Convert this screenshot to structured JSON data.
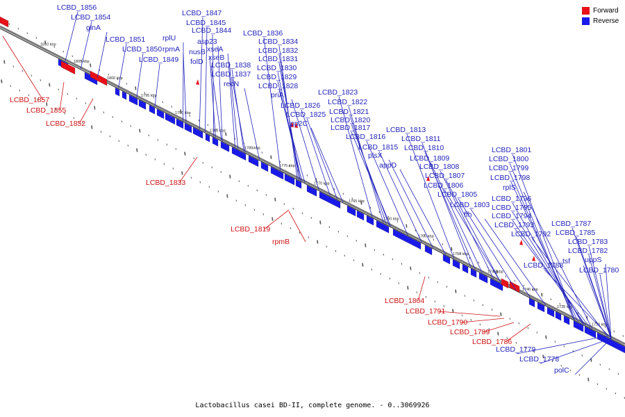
{
  "colors": {
    "forward": "#e8111a",
    "reverse": "#1a1ae8",
    "backbone": "#7a7a7a",
    "label_forward": "#cc1111",
    "label_reverse": "#2222bb"
  },
  "legend": [
    {
      "label": "Forward",
      "color": "#e8111a"
    },
    {
      "label": "Reverse",
      "color": "#1a1ae8"
    }
  ],
  "caption": "Lactobacillus casei BD-II, complete genome. - 0..3069926",
  "ruler": [
    "1810 kbp",
    "1805 kbp",
    "1800 kbp",
    "1795 kbp",
    "1790 kbp",
    "1785 kbp",
    "1780 kbp",
    "1775 kbp",
    "1770 kbp",
    "1765 kbp",
    "1760 kbp",
    "1755 kbp",
    "1750 kbp",
    "1745 kbp",
    "1740 kbp",
    "1735 kbp",
    "1730 kbp"
  ],
  "reverse_labels": [
    "LCBD_1856",
    "LCBD_1854",
    "glnA",
    "LCBD_1851",
    "LCBD_1850",
    "LCBD_1849",
    "LCBD_1847",
    "LCBD_1845",
    "rplU",
    "LCBD_1844",
    "rpmA",
    "asp23",
    "nusB",
    "xseA",
    "xseB",
    "folD",
    "LCBD_1838",
    "LCBD_1837",
    "recN",
    "LCBD_1836",
    "LCBD_1834",
    "LCBD_1832",
    "LCBD_1831",
    "LCBD_1830",
    "LCBD_1829",
    "LCBD_1828",
    "priA",
    "LCBD_1826",
    "LCBD_1825",
    "pp2C",
    "LCBD_1823",
    "LCBD_1822",
    "LCBD_1821",
    "LCBD_1820",
    "LCBD_1817",
    "LCBD_1816",
    "LCBD_1815",
    "plsX",
    "appD",
    "LCBD_1813",
    "LCBD_1811",
    "LCBD_1810",
    "LCBD_1809",
    "LCBD_1808",
    "LCBD_1807",
    "LCBD_1806",
    "LCBD_1805",
    "LCBD_1803",
    "ffh",
    "LCBD_1801",
    "LCBD_1800",
    "LCBD_1799",
    "LCBD_1798",
    "rplS",
    "LCBD_1796",
    "LCBD_1795",
    "LCBD_1794",
    "LCBD_1793",
    "LCBD_1792",
    "LCBD_1788",
    "LCBD_1787",
    "LCBD_1785",
    "LCBD_1783",
    "tsf",
    "LCBD_1782",
    "uppS",
    "LCBD_1780",
    "LCBD_1779",
    "LCBD_1778",
    "polC"
  ],
  "forward_labels": [
    "LCBD_1857",
    "LCBD_1855",
    "LCBD_1852",
    "LCBD_1833",
    "LCBD_1819",
    "rpmB",
    "LCBD_1804",
    "LCBD_1791",
    "LCBD_1790",
    "LCBD_1789",
    "LCBD_1786"
  ]
}
